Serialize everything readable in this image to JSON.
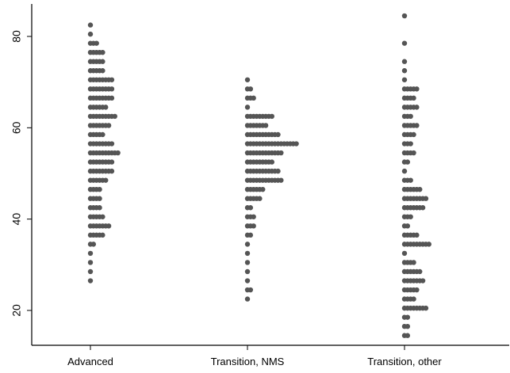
{
  "colors": {
    "dots": "#555555",
    "axis": "#000000",
    "background": "#ffffff"
  },
  "chart_data": {
    "type": "dot strip plot",
    "title": "",
    "xlabel": "",
    "ylabel": "",
    "ylim": [
      12.5,
      87.5
    ],
    "y_ticks": [
      20,
      40,
      60,
      80
    ],
    "y_tick_labels": [
      "20",
      "40",
      "60",
      "80"
    ],
    "categories": [
      "Advanced",
      "Transition, NMS",
      "Transition, other"
    ],
    "series": [
      {
        "category": "Advanced",
        "bins": [
          {
            "y": 26.5,
            "count": 1
          },
          {
            "y": 28.5,
            "count": 1
          },
          {
            "y": 30.5,
            "count": 1
          },
          {
            "y": 32.5,
            "count": 1
          },
          {
            "y": 34.5,
            "count": 2
          },
          {
            "y": 36.5,
            "count": 5
          },
          {
            "y": 38.5,
            "count": 7
          },
          {
            "y": 40.5,
            "count": 5
          },
          {
            "y": 42.5,
            "count": 4
          },
          {
            "y": 44.5,
            "count": 4
          },
          {
            "y": 46.5,
            "count": 4
          },
          {
            "y": 48.5,
            "count": 6
          },
          {
            "y": 50.5,
            "count": 8
          },
          {
            "y": 52.5,
            "count": 8
          },
          {
            "y": 54.5,
            "count": 10
          },
          {
            "y": 56.5,
            "count": 8
          },
          {
            "y": 58.5,
            "count": 5
          },
          {
            "y": 60.5,
            "count": 7
          },
          {
            "y": 62.5,
            "count": 9
          },
          {
            "y": 64.5,
            "count": 6
          },
          {
            "y": 66.5,
            "count": 8
          },
          {
            "y": 68.5,
            "count": 8
          },
          {
            "y": 70.5,
            "count": 8
          },
          {
            "y": 72.5,
            "count": 5
          },
          {
            "y": 74.5,
            "count": 5
          },
          {
            "y": 76.5,
            "count": 5
          },
          {
            "y": 78.5,
            "count": 3
          },
          {
            "y": 80.5,
            "count": 1
          },
          {
            "y": 82.5,
            "count": 1
          }
        ]
      },
      {
        "category": "Transition, NMS",
        "bins": [
          {
            "y": 22.5,
            "count": 1
          },
          {
            "y": 24.5,
            "count": 2
          },
          {
            "y": 26.5,
            "count": 1
          },
          {
            "y": 28.5,
            "count": 1
          },
          {
            "y": 30.5,
            "count": 1
          },
          {
            "y": 32.5,
            "count": 1
          },
          {
            "y": 34.5,
            "count": 1
          },
          {
            "y": 36.5,
            "count": 2
          },
          {
            "y": 38.5,
            "count": 3
          },
          {
            "y": 40.5,
            "count": 3
          },
          {
            "y": 42.5,
            "count": 2
          },
          {
            "y": 44.5,
            "count": 5
          },
          {
            "y": 46.5,
            "count": 6
          },
          {
            "y": 48.5,
            "count": 12
          },
          {
            "y": 50.5,
            "count": 11
          },
          {
            "y": 52.5,
            "count": 9
          },
          {
            "y": 54.5,
            "count": 12
          },
          {
            "y": 56.5,
            "count": 17
          },
          {
            "y": 58.5,
            "count": 11
          },
          {
            "y": 60.5,
            "count": 7
          },
          {
            "y": 62.5,
            "count": 9
          },
          {
            "y": 64.5,
            "count": 1
          },
          {
            "y": 66.5,
            "count": 3
          },
          {
            "y": 68.5,
            "count": 2
          },
          {
            "y": 70.5,
            "count": 1
          }
        ]
      },
      {
        "category": "Transition, other",
        "bins": [
          {
            "y": 14.5,
            "count": 2
          },
          {
            "y": 16.5,
            "count": 2
          },
          {
            "y": 18.5,
            "count": 2
          },
          {
            "y": 20.5,
            "count": 8
          },
          {
            "y": 22.5,
            "count": 4
          },
          {
            "y": 24.5,
            "count": 5
          },
          {
            "y": 26.5,
            "count": 7
          },
          {
            "y": 28.5,
            "count": 6
          },
          {
            "y": 30.5,
            "count": 4
          },
          {
            "y": 32.5,
            "count": 1
          },
          {
            "y": 34.5,
            "count": 9
          },
          {
            "y": 36.5,
            "count": 5
          },
          {
            "y": 38.5,
            "count": 2
          },
          {
            "y": 40.5,
            "count": 3
          },
          {
            "y": 42.5,
            "count": 7
          },
          {
            "y": 44.5,
            "count": 8
          },
          {
            "y": 46.5,
            "count": 6
          },
          {
            "y": 48.5,
            "count": 3
          },
          {
            "y": 50.5,
            "count": 1
          },
          {
            "y": 52.5,
            "count": 2
          },
          {
            "y": 54.5,
            "count": 4
          },
          {
            "y": 56.5,
            "count": 3
          },
          {
            "y": 58.5,
            "count": 4
          },
          {
            "y": 60.5,
            "count": 5
          },
          {
            "y": 62.5,
            "count": 3
          },
          {
            "y": 64.5,
            "count": 5
          },
          {
            "y": 66.5,
            "count": 4
          },
          {
            "y": 68.5,
            "count": 5
          },
          {
            "y": 70.5,
            "count": 1
          },
          {
            "y": 72.5,
            "count": 1
          },
          {
            "y": 74.5,
            "count": 1
          },
          {
            "y": 78.5,
            "count": 1
          },
          {
            "y": 84.5,
            "count": 1
          }
        ]
      }
    ],
    "grid": false,
    "legend": "none"
  }
}
